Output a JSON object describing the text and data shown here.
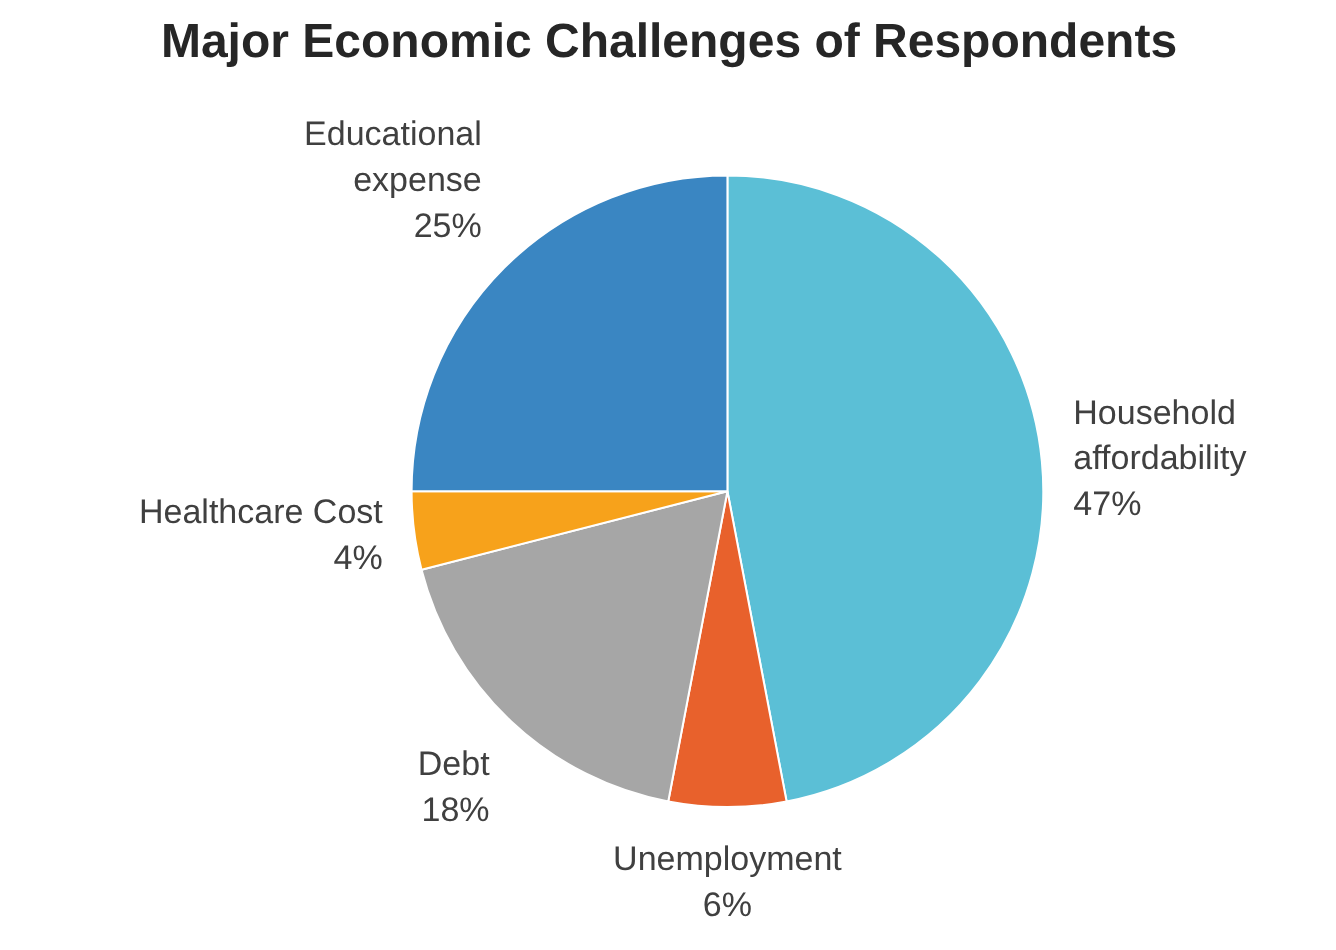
{
  "chart_data": {
    "type": "pie",
    "title": "Major Economic Challenges of Respondents",
    "categories": [
      "Household affordability",
      "Unemployment",
      "Debt",
      "Healthcare Cost",
      "Educational expense"
    ],
    "values": [
      47,
      6,
      18,
      4,
      25
    ],
    "value_labels": [
      "47%",
      "6%",
      "18%",
      "4%",
      "25%"
    ],
    "colors": [
      "#5bbfd6",
      "#e8612c",
      "#a6a6a6",
      "#f7a21b",
      "#3a86c2"
    ]
  }
}
